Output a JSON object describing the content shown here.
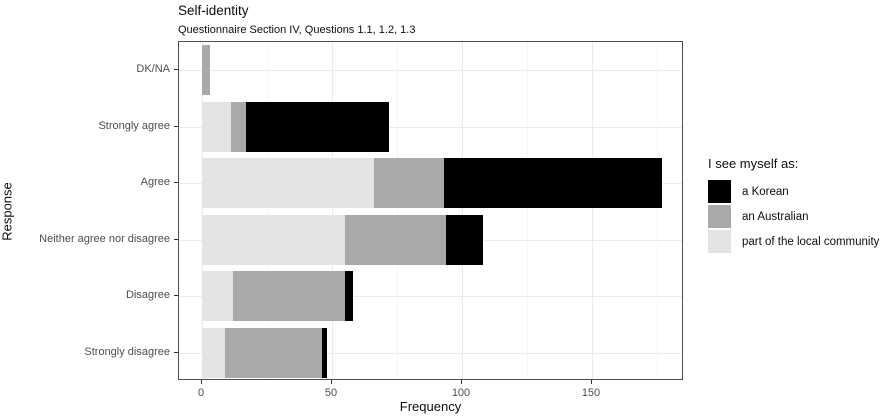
{
  "title": "Self-identity",
  "subtitle": "Questionnaire Section IV, Questions 1.1, 1.2, 1.3",
  "axes": {
    "x_label": "Frequency",
    "y_label": "Response"
  },
  "legend": {
    "title": "I see myself as:",
    "entries": [
      {
        "label": "a Korean",
        "color": "#000000"
      },
      {
        "label": "an Australian",
        "color": "#A9A9A9"
      },
      {
        "label": "part of the local community",
        "color": "#E4E4E4"
      }
    ]
  },
  "chart_data": {
    "type": "bar",
    "orientation": "horizontal",
    "stacked": true,
    "title": "Self-identity",
    "subtitle": "Questionnaire Section IV, Questions 1.1, 1.2, 1.3",
    "xlabel": "Frequency",
    "ylabel": "Response",
    "categories": [
      "DK/NA",
      "Strongly agree",
      "Agree",
      "Neither agree nor disagree",
      "Disagree",
      "Strongly disagree"
    ],
    "x_ticks": [
      0,
      50,
      100,
      150
    ],
    "x_minor_ticks": [
      25,
      75,
      125,
      175
    ],
    "xlim": [
      0,
      185
    ],
    "grid": true,
    "legend_position": "right",
    "legend_title": "I see myself as:",
    "series": [
      {
        "name": "part of the local community",
        "color": "#E4E4E4",
        "values": [
          0,
          11,
          66,
          55,
          12,
          9
        ]
      },
      {
        "name": "an Australian",
        "color": "#A9A9A9",
        "values": [
          3,
          6,
          27,
          39,
          43,
          37
        ]
      },
      {
        "name": "a Korean",
        "color": "#000000",
        "values": [
          0,
          55,
          84,
          14,
          3,
          2
        ]
      }
    ],
    "totals": [
      3,
      72,
      177,
      108,
      58,
      48
    ]
  }
}
